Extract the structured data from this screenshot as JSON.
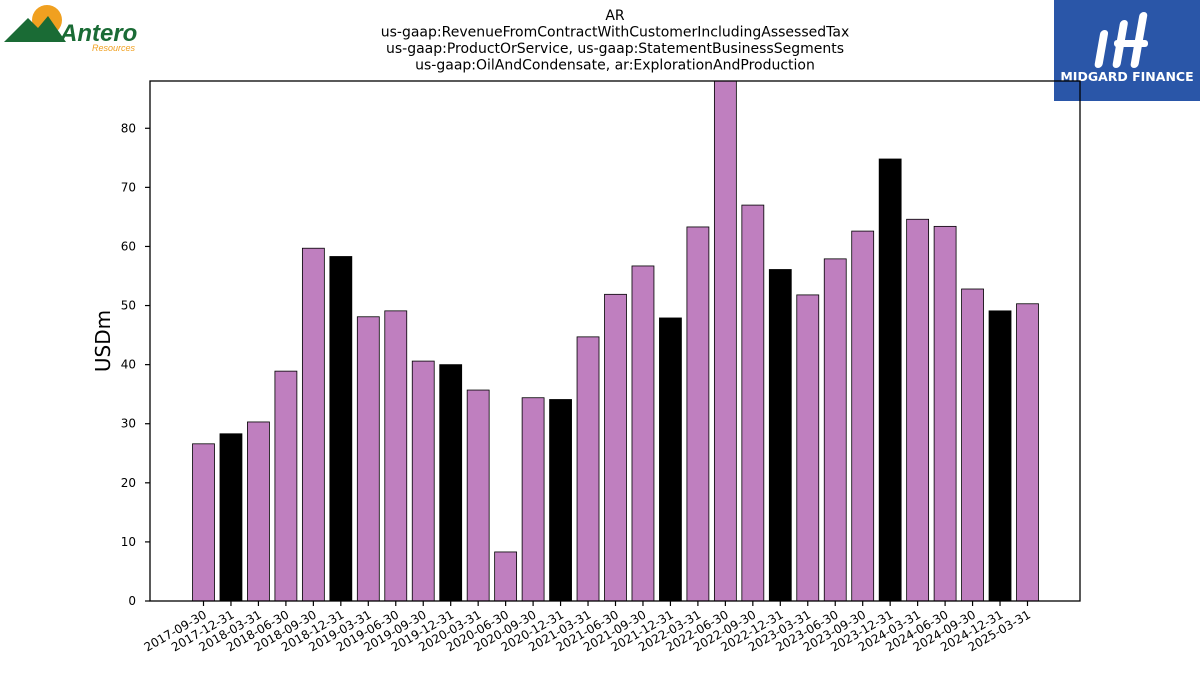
{
  "logos": {
    "left_text": "Antero",
    "left_subtext": "Resources",
    "right_text": "MIDGARD FINANCE"
  },
  "colors": {
    "bar_regular": "#bf7fbf",
    "bar_q4": "#000000",
    "bar_edge": "#000000",
    "logo_green": "#1a6b35",
    "logo_orange": "#f0a020",
    "logo_blue": "#2a56a8"
  },
  "chart_data": {
    "type": "bar",
    "title": [
      "AR",
      "us-gaap:RevenueFromContractWithCustomerIncludingAssessedTax",
      "us-gaap:ProductOrService, us-gaap:StatementBusinessSegments",
      "us-gaap:OilAndCondensate, ar:ExplorationAndProduction"
    ],
    "xlabel": "",
    "ylabel": "USDm",
    "ylim": [
      0,
      88
    ],
    "yticks": [
      0,
      10,
      20,
      30,
      40,
      50,
      60,
      70,
      80
    ],
    "grid": false,
    "categories": [
      "2017-09-30",
      "2017-12-31",
      "2018-03-31",
      "2018-06-30",
      "2018-09-30",
      "2018-12-31",
      "2019-03-31",
      "2019-06-30",
      "2019-09-30",
      "2019-12-31",
      "2020-03-31",
      "2020-06-30",
      "2020-09-30",
      "2020-12-31",
      "2021-03-31",
      "2021-06-30",
      "2021-09-30",
      "2021-12-31",
      "2022-03-31",
      "2022-06-30",
      "2022-09-30",
      "2022-12-31",
      "2023-03-31",
      "2023-06-30",
      "2023-09-30",
      "2023-12-31",
      "2024-03-31",
      "2024-06-30",
      "2024-09-30",
      "2024-12-31",
      "2025-03-31"
    ],
    "values": [
      26.6,
      28.3,
      30.3,
      38.9,
      59.7,
      58.3,
      48.1,
      49.1,
      40.6,
      40.0,
      35.7,
      8.3,
      34.4,
      34.1,
      44.7,
      51.9,
      56.7,
      47.9,
      63.3,
      88.5,
      67.0,
      56.1,
      51.8,
      57.9,
      62.6,
      74.8,
      64.6,
      63.4,
      52.8,
      49.1,
      50.3
    ],
    "highlight": [
      false,
      true,
      false,
      false,
      false,
      true,
      false,
      false,
      false,
      true,
      false,
      false,
      false,
      true,
      false,
      false,
      false,
      true,
      false,
      false,
      false,
      true,
      false,
      false,
      false,
      true,
      false,
      false,
      false,
      true,
      false
    ]
  }
}
